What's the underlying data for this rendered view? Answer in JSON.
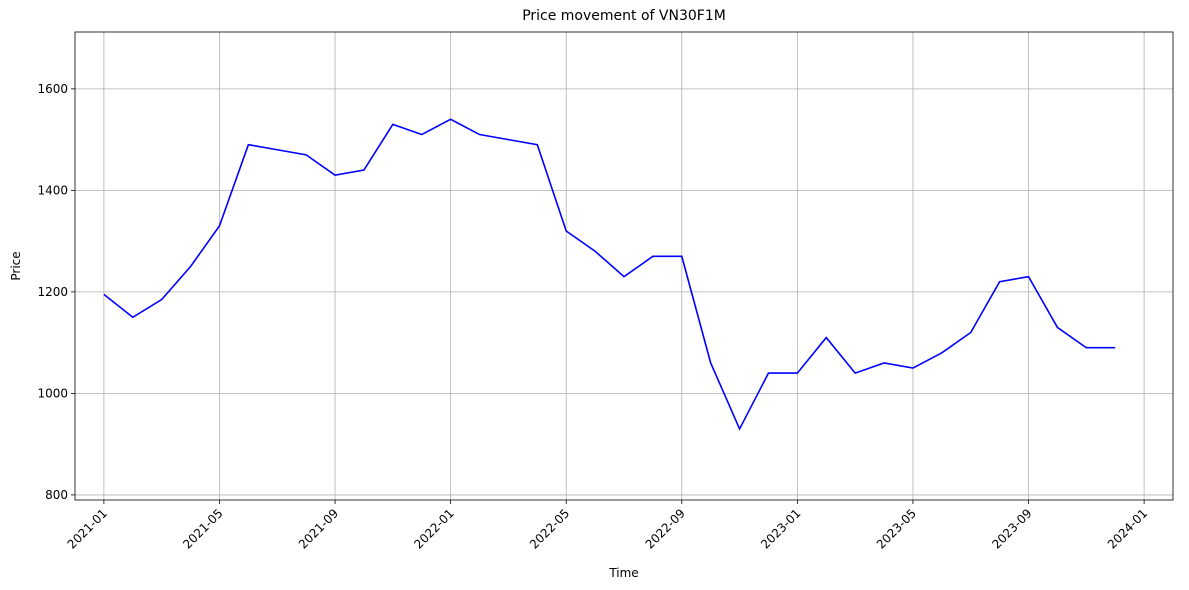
{
  "chart_data": {
    "type": "line",
    "title": "Price movement of VN30F1M",
    "x_label": "Time",
    "y_label": "Price",
    "x": [
      "2021-01",
      "2021-02",
      "2021-03",
      "2021-04",
      "2021-05",
      "2021-06",
      "2021-07",
      "2021-08",
      "2021-09",
      "2021-10",
      "2021-11",
      "2021-12",
      "2022-01",
      "2022-02",
      "2022-03",
      "2022-04",
      "2022-05",
      "2022-06",
      "2022-07",
      "2022-08",
      "2022-09",
      "2022-10",
      "2022-11",
      "2022-12",
      "2023-01",
      "2023-02",
      "2023-03",
      "2023-04",
      "2023-05",
      "2023-06",
      "2023-07",
      "2023-08",
      "2023-09",
      "2023-10",
      "2023-11",
      "2023-12"
    ],
    "values": [
      1195,
      1150,
      1185,
      1250,
      1330,
      1490,
      1480,
      1470,
      1430,
      1440,
      1530,
      1510,
      1540,
      1510,
      1500,
      1490,
      1320,
      1280,
      1230,
      1270,
      1270,
      1060,
      930,
      1040,
      1040,
      1110,
      1040,
      1060,
      1050,
      1080,
      1120,
      1220,
      1230,
      1130,
      1090,
      1090
    ],
    "color": "#0000ff",
    "xlim": [
      "2020-12",
      "2024-02"
    ],
    "xticks": [
      "2021-01",
      "2021-05",
      "2021-09",
      "2022-01",
      "2022-05",
      "2022-09",
      "2023-01",
      "2023-05",
      "2023-09",
      "2024-01"
    ],
    "ylim": [
      790,
      1712
    ],
    "yticks": [
      800,
      1000,
      1200,
      1400,
      1600
    ],
    "grid": true
  }
}
